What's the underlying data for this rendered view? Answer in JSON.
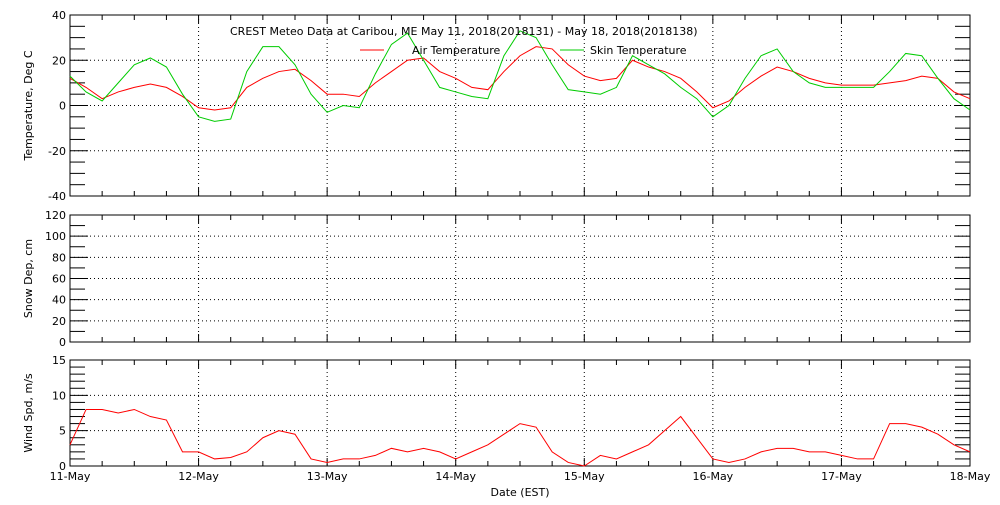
{
  "chart_data": [
    {
      "type": "line",
      "title": "CREST Meteo Data at Caribou, ME    May 11, 2018(2018131) - May 18, 2018(2018138)",
      "xlabel": "",
      "ylabel": "Temperature, Deg C",
      "ylim": [
        -40,
        40
      ],
      "yticks": [
        -40,
        -20,
        0,
        20,
        40
      ],
      "grid": true,
      "legend": "top-center",
      "series": [
        {
          "name": "Air Temperature",
          "color": "#ff0000",
          "values": [
            12,
            8,
            3,
            6,
            8,
            9.5,
            8,
            4,
            -1,
            -2,
            -1,
            8,
            12,
            15,
            16,
            11,
            5,
            5,
            4,
            10,
            15,
            20,
            21,
            15,
            12,
            8,
            7,
            15,
            22,
            26,
            25,
            18,
            13,
            11,
            12,
            20,
            17,
            15,
            12,
            6,
            -1,
            2,
            8,
            13,
            17,
            15,
            12,
            10,
            9,
            9,
            9,
            10,
            11,
            13,
            12,
            6,
            3
          ]
        },
        {
          "name": "Skin Temperature",
          "color": "#00cc00",
          "values": [
            13,
            6,
            2,
            10,
            18,
            21,
            17,
            5,
            -5,
            -7,
            -6,
            15,
            26,
            26,
            18,
            5,
            -3,
            0,
            -1,
            14,
            27,
            32,
            20,
            8,
            6,
            4,
            3,
            22,
            33,
            30,
            18,
            7,
            6,
            5,
            8,
            22,
            18,
            14,
            8,
            3,
            -5,
            0,
            12,
            22,
            25,
            15,
            10,
            8,
            8,
            8,
            8,
            15,
            23,
            22,
            12,
            3,
            -2
          ]
        }
      ]
    },
    {
      "type": "line",
      "xlabel": "",
      "ylabel": "Snow Dep, cm",
      "ylim": [
        0,
        120
      ],
      "yticks": [
        0,
        20,
        40,
        60,
        80,
        100,
        120
      ],
      "grid": true,
      "series": []
    },
    {
      "type": "line",
      "xlabel": "Date (EST)",
      "ylabel": "Wind Spd, m/s",
      "ylim": [
        0,
        15
      ],
      "yticks": [
        0,
        5,
        10,
        15
      ],
      "grid": true,
      "series": [
        {
          "color": "#ff0000",
          "values": [
            3,
            8,
            8,
            7.5,
            8,
            7,
            6.5,
            2,
            2,
            1,
            1.2,
            2,
            4,
            5,
            4.5,
            1,
            0.5,
            1,
            1,
            1.5,
            2.5,
            2,
            2.5,
            2,
            1,
            2,
            3,
            4.5,
            6,
            5.5,
            2,
            0.5,
            0,
            1.5,
            1,
            2,
            3,
            5,
            7,
            4,
            1,
            0.5,
            1,
            2,
            2.5,
            2.5,
            2,
            2,
            1.5,
            1,
            1,
            6,
            6,
            5.5,
            4.5,
            3,
            2
          ]
        }
      ]
    }
  ],
  "x_range": [
    "2018-05-11 00:00",
    "2018-05-18 00:00"
  ],
  "x_sampling_hours": 3,
  "xtick_labels": [
    "11-May",
    "12-May",
    "13-May",
    "14-May",
    "15-May",
    "16-May",
    "17-May",
    "18-May"
  ]
}
